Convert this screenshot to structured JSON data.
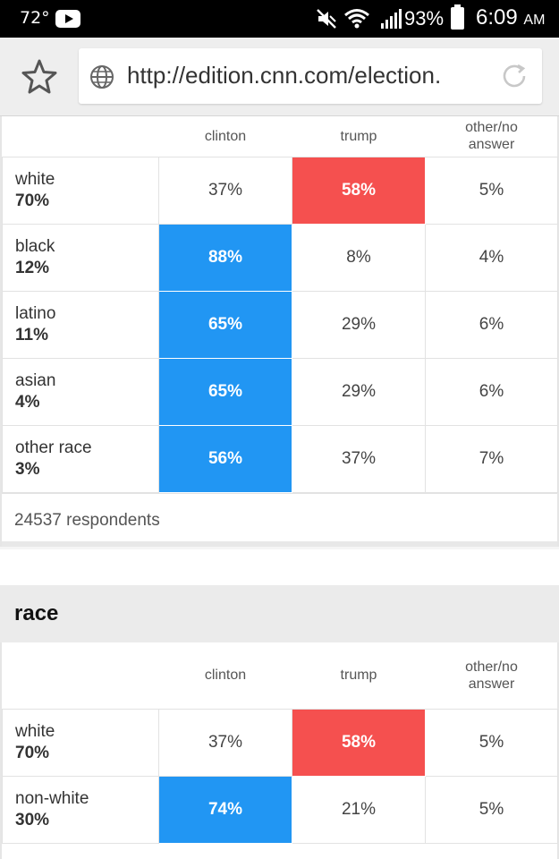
{
  "status_bar": {
    "temperature": "72°",
    "battery_percent": "93%",
    "time": "6:09",
    "ampm": "AM",
    "icons": [
      "youtube-icon",
      "mute-icon",
      "wifi-icon",
      "signal-icon",
      "battery-icon"
    ]
  },
  "browser": {
    "url": "http://edition.cnn.com/election.",
    "icons": [
      "star-icon",
      "globe-icon",
      "reload-icon"
    ]
  },
  "colors": {
    "clinton_blue": "#2196f3",
    "trump_red": "#f5504f"
  },
  "table1": {
    "headers": [
      "",
      "clinton",
      "trump",
      "other/no answer"
    ],
    "rows": [
      {
        "name": "white",
        "share": "70%",
        "clinton": "37%",
        "trump": "58%",
        "other": "5%",
        "winner": "trump"
      },
      {
        "name": "black",
        "share": "12%",
        "clinton": "88%",
        "trump": "8%",
        "other": "4%",
        "winner": "clinton"
      },
      {
        "name": "latino",
        "share": "11%",
        "clinton": "65%",
        "trump": "29%",
        "other": "6%",
        "winner": "clinton"
      },
      {
        "name": "asian",
        "share": "4%",
        "clinton": "65%",
        "trump": "29%",
        "other": "6%",
        "winner": "clinton"
      },
      {
        "name": "other race",
        "share": "3%",
        "clinton": "56%",
        "trump": "37%",
        "other": "7%",
        "winner": "clinton"
      }
    ],
    "respondents": "24537 respondents"
  },
  "section2": {
    "title": "race",
    "headers": [
      "",
      "clinton",
      "trump",
      "other/no answer"
    ],
    "rows": [
      {
        "name": "white",
        "share": "70%",
        "clinton": "37%",
        "trump": "58%",
        "other": "5%",
        "winner": "trump"
      },
      {
        "name": "non-white",
        "share": "30%",
        "clinton": "74%",
        "trump": "21%",
        "other": "5%",
        "winner": "clinton"
      }
    ]
  }
}
